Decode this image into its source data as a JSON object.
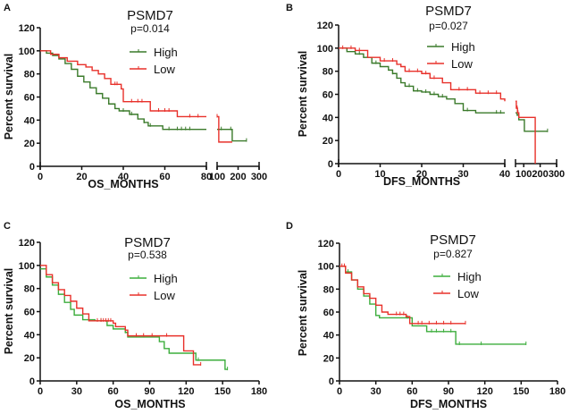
{
  "chart_data": [
    {
      "panel_label": "A",
      "type": "line",
      "title": "PSMD7",
      "subtitle": "p=0.014",
      "xlabel": "OS_MONTHS",
      "ylabel": "Percent survival",
      "ylim": [
        0,
        120
      ],
      "yticks": [
        0,
        20,
        40,
        60,
        80,
        100,
        120
      ],
      "x_segments": [
        {
          "range": [
            0,
            80
          ],
          "ticks": [
            0,
            20,
            40,
            60,
            80
          ]
        },
        {
          "range": [
            100,
            300
          ],
          "ticks": [
            100,
            200,
            300
          ]
        }
      ],
      "series": [
        {
          "name": "High",
          "color": "#3a7a2a",
          "segments": [
            [
              [
                0,
                100
              ],
              [
                3,
                98
              ],
              [
                6,
                96
              ],
              [
                9,
                93
              ],
              [
                12,
                89
              ],
              [
                15,
                84
              ],
              [
                18,
                78
              ],
              [
                21,
                73
              ],
              [
                24,
                68
              ],
              [
                27,
                63
              ],
              [
                30,
                59
              ],
              [
                33,
                54
              ],
              [
                36,
                50
              ],
              [
                38,
                48
              ],
              [
                43,
                45
              ],
              [
                47,
                41
              ],
              [
                50,
                38
              ],
              [
                52,
                35
              ],
              [
                59,
                32
              ],
              [
                80,
                32
              ]
            ],
            [
              [
                100,
                32
              ],
              [
                172,
                32
              ],
              [
                172,
                22
              ],
              [
                240,
                22
              ]
            ]
          ],
          "censored": [
            40,
            44,
            50,
            53,
            62,
            66,
            68,
            70,
            72,
            120,
            165,
            240
          ]
        },
        {
          "name": "Low",
          "color": "#e8302a",
          "segments": [
            [
              [
                0,
                100
              ],
              [
                5,
                97
              ],
              [
                9,
                94
              ],
              [
                13,
                91
              ],
              [
                18,
                88
              ],
              [
                22,
                86
              ],
              [
                25,
                83
              ],
              [
                28,
                80
              ],
              [
                31,
                76
              ],
              [
                34,
                71
              ],
              [
                39,
                67
              ],
              [
                40,
                56
              ],
              [
                53,
                56
              ],
              [
                53,
                48
              ],
              [
                66,
                48
              ],
              [
                66,
                43
              ],
              [
                80,
                43
              ]
            ],
            [
              [
                100,
                43
              ],
              [
                108,
                43
              ],
              [
                108,
                21
              ],
              [
                172,
                21
              ]
            ]
          ],
          "censored": [
            36,
            37,
            44,
            47,
            49,
            57,
            60,
            62,
            72,
            76,
            100
          ]
        }
      ]
    },
    {
      "panel_label": "B",
      "type": "line",
      "title": "PSMD7",
      "subtitle": "p=0.027",
      "xlabel": "DFS_MONTHS",
      "ylabel": "Percent survival",
      "ylim": [
        0,
        120
      ],
      "yticks": [
        0,
        20,
        40,
        60,
        80,
        100,
        120
      ],
      "x_segments": [
        {
          "range": [
            0,
            40
          ],
          "ticks": [
            0,
            10,
            20,
            30,
            40
          ]
        },
        {
          "range": [
            50,
            300
          ],
          "ticks": [
            100,
            200,
            300
          ]
        }
      ],
      "series": [
        {
          "name": "High",
          "color": "#3a7a2a",
          "segments": [
            [
              [
                0,
                100
              ],
              [
                2,
                97
              ],
              [
                4,
                95
              ],
              [
                6,
                92
              ],
              [
                8,
                87
              ],
              [
                10,
                84
              ],
              [
                12,
                81
              ],
              [
                13,
                78
              ],
              [
                14,
                74
              ],
              [
                15,
                70
              ],
              [
                16,
                67
              ],
              [
                18,
                63
              ],
              [
                20,
                62
              ],
              [
                22,
                60
              ],
              [
                24,
                58
              ],
              [
                26,
                56
              ],
              [
                28,
                52
              ],
              [
                30,
                46
              ],
              [
                33,
                44
              ],
              [
                40,
                44
              ]
            ],
            [
              [
                50,
                44
              ],
              [
                60,
                42
              ],
              [
                70,
                38
              ],
              [
                104,
                38
              ],
              [
                104,
                28
              ],
              [
                245,
                28
              ]
            ]
          ],
          "censored": [
            5,
            9,
            13,
            17,
            19,
            21,
            23,
            25,
            31,
            38,
            39,
            245
          ]
        },
        {
          "name": "Low",
          "color": "#e8302a",
          "segments": [
            [
              [
                0,
                100
              ],
              [
                4,
                98
              ],
              [
                7,
                92
              ],
              [
                10,
                89
              ],
              [
                14,
                86
              ],
              [
                15,
                84
              ],
              [
                16,
                80
              ],
              [
                20,
                78
              ],
              [
                22,
                74
              ],
              [
                25,
                70
              ],
              [
                27,
                64
              ],
              [
                33,
                61
              ],
              [
                39,
                56
              ],
              [
                40,
                54
              ]
            ],
            [
              [
                50,
                54
              ],
              [
                55,
                48
              ],
              [
                62,
                44
              ],
              [
                70,
                40
              ],
              [
                170,
                40
              ],
              [
                170,
                0
              ]
            ]
          ],
          "censored": [
            1,
            3,
            5,
            11,
            13,
            17,
            19,
            21,
            23,
            29,
            31,
            34,
            36,
            38,
            60,
            65
          ]
        }
      ]
    },
    {
      "panel_label": "C",
      "type": "line",
      "title": "PSMD7",
      "subtitle": "p=0.538",
      "xlabel": "OS_MONTHS",
      "ylabel": "Percent survival",
      "ylim": [
        0,
        120
      ],
      "yticks": [
        0,
        20,
        40,
        60,
        80,
        100,
        120
      ],
      "x_segments": [
        {
          "range": [
            0,
            180
          ],
          "ticks": [
            0,
            30,
            60,
            90,
            120,
            150,
            180
          ]
        }
      ],
      "series": [
        {
          "name": "High",
          "color": "#3cad3c",
          "segments": [
            [
              [
                0,
                97
              ],
              [
                5,
                90
              ],
              [
                10,
                83
              ],
              [
                15,
                75
              ],
              [
                20,
                68
              ],
              [
                25,
                62
              ],
              [
                28,
                57
              ],
              [
                35,
                53
              ],
              [
                45,
                52
              ],
              [
                55,
                48
              ],
              [
                60,
                45
              ],
              [
                70,
                42
              ],
              [
                72,
                38
              ],
              [
                95,
                38
              ],
              [
                98,
                34
              ],
              [
                102,
                28
              ],
              [
                106,
                24
              ],
              [
                124,
                24
              ],
              [
                128,
                18
              ],
              [
                150,
                18
              ],
              [
                152,
                10
              ],
              [
                154,
                10
              ]
            ]
          ],
          "censored": [
            40,
            50,
            70,
            130,
            154
          ]
        },
        {
          "name": "Low",
          "color": "#e8302a",
          "segments": [
            [
              [
                0,
                100
              ],
              [
                5,
                92
              ],
              [
                10,
                85
              ],
              [
                15,
                79
              ],
              [
                20,
                74
              ],
              [
                25,
                69
              ],
              [
                30,
                63
              ],
              [
                35,
                58
              ],
              [
                40,
                52
              ],
              [
                60,
                50
              ],
              [
                62,
                47
              ],
              [
                70,
                44
              ],
              [
                72,
                39
              ],
              [
                118,
                39
              ],
              [
                118,
                26
              ],
              [
                126,
                26
              ],
              [
                126,
                14
              ],
              [
                132,
                14
              ]
            ]
          ],
          "censored": [
            47,
            50,
            52,
            54,
            56,
            58,
            79,
            85,
            92,
            104,
            132
          ]
        }
      ]
    },
    {
      "panel_label": "D",
      "type": "line",
      "title": "PSMD7",
      "subtitle": "p=0.827",
      "xlabel": "DFS_MONTHS",
      "ylabel": "Percent survival",
      "ylim": [
        0,
        120
      ],
      "yticks": [
        0,
        20,
        40,
        60,
        80,
        100,
        120
      ],
      "x_segments": [
        {
          "range": [
            0,
            180
          ],
          "ticks": [
            0,
            30,
            60,
            90,
            120,
            150,
            180
          ]
        }
      ],
      "series": [
        {
          "name": "High",
          "color": "#3cad3c",
          "segments": [
            [
              [
                0,
                100
              ],
              [
                5,
                95
              ],
              [
                10,
                88
              ],
              [
                15,
                80
              ],
              [
                20,
                74
              ],
              [
                25,
                67
              ],
              [
                30,
                57
              ],
              [
                33,
                55
              ],
              [
                58,
                55
              ],
              [
                60,
                48
              ],
              [
                72,
                48
              ],
              [
                72,
                43
              ],
              [
                96,
                43
              ],
              [
                96,
                32
              ],
              [
                154,
                32
              ]
            ]
          ],
          "censored": [
            7,
            56,
            76,
            80,
            86,
            92,
            99,
            117,
            154
          ]
        },
        {
          "name": "Low",
          "color": "#e8302a",
          "segments": [
            [
              [
                0,
                100
              ],
              [
                5,
                94
              ],
              [
                10,
                88
              ],
              [
                15,
                82
              ],
              [
                20,
                76
              ],
              [
                25,
                72
              ],
              [
                30,
                66
              ],
              [
                35,
                60
              ],
              [
                40,
                58
              ],
              [
                55,
                56
              ],
              [
                58,
                50
              ],
              [
                104,
                50
              ]
            ]
          ],
          "censored": [
            2,
            4,
            47,
            50,
            53,
            65,
            68,
            74,
            80,
            86,
            92,
            104
          ]
        }
      ]
    }
  ]
}
